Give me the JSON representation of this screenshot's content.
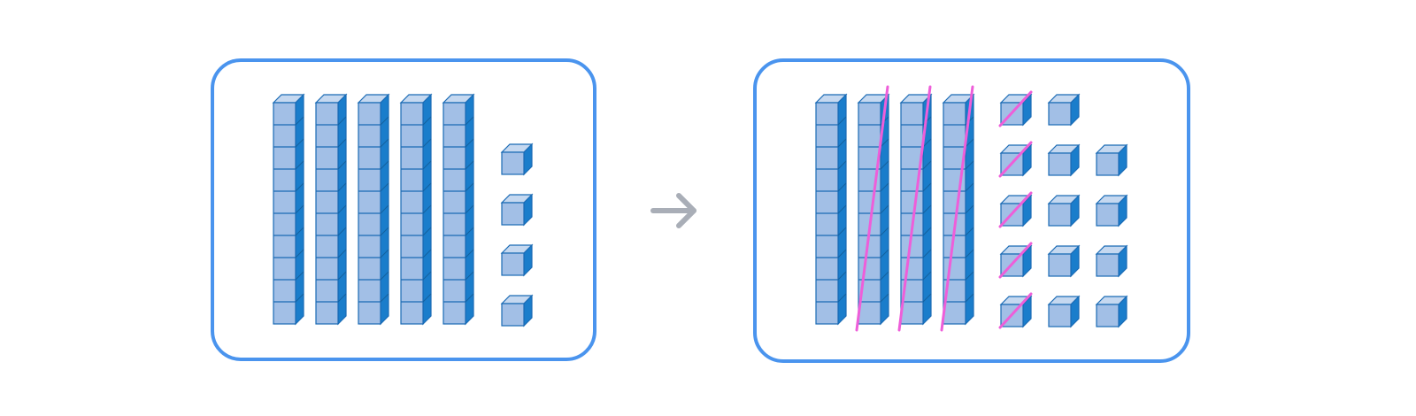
{
  "colors": {
    "panel_border": "#4a94ee",
    "cube_front": "#a2bfe6",
    "cube_top": "#c5d8f0",
    "cube_side": "#1a7dcb",
    "cube_edge": "#1b6bb5",
    "strike": "#ee5ed9",
    "arrow": "#a9aeb7"
  },
  "before": {
    "tens_rods": 5,
    "ones_cubes": 4
  },
  "after": {
    "tens_rods": 4,
    "tens_rods_crossed_out": 3,
    "ones_cubes": 14,
    "ones_cubes_crossed_out": 5
  },
  "icons": {
    "transition": "right-arrow-icon"
  }
}
